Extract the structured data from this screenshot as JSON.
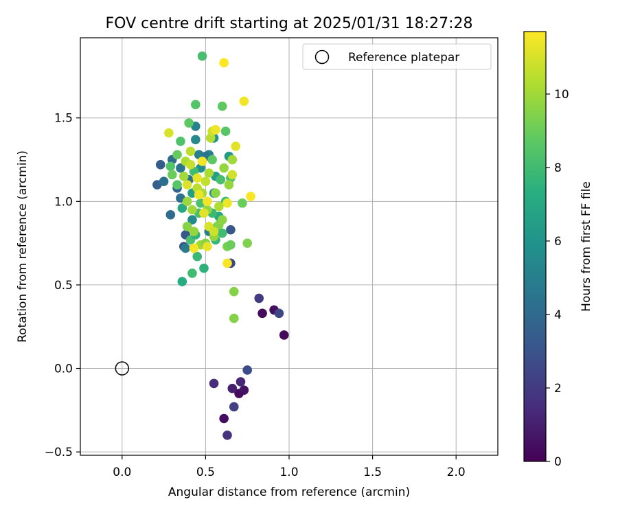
{
  "chart_data": {
    "type": "scatter",
    "title": "FOV centre drift starting at 2025/01/31 18:27:28",
    "xlabel": "Angular distance from reference (arcmin)",
    "ylabel": "Rotation from reference (arcmin)",
    "xlim": [
      -0.25,
      2.25
    ],
    "ylim": [
      -0.52,
      1.98
    ],
    "xticks": [
      0.0,
      0.5,
      1.0,
      1.5,
      2.0
    ],
    "xtick_labels": [
      "0.0",
      "0.5",
      "1.0",
      "1.5",
      "2.0"
    ],
    "yticks": [
      -0.5,
      0.0,
      0.5,
      1.0,
      1.5
    ],
    "ytick_labels": [
      "−0.5",
      "0.0",
      "0.5",
      "1.0",
      "1.5"
    ],
    "grid": true,
    "legend": {
      "position": "top-right",
      "entries": [
        "Reference platepar"
      ]
    },
    "colorbar": {
      "label": "Hours from first FF file",
      "range": [
        0,
        11.7
      ],
      "ticks": [
        0,
        2,
        4,
        6,
        8,
        10
      ],
      "tick_labels": [
        "0",
        "2",
        "4",
        "6",
        "8",
        "10"
      ],
      "colormap": "viridis"
    },
    "reference_point": {
      "x": 0.0,
      "y": 0.0
    },
    "points": [
      [
        0.97,
        0.2,
        0.2
      ],
      [
        0.84,
        0.33,
        0.3
      ],
      [
        0.91,
        0.35,
        0.5
      ],
      [
        0.61,
        -0.3,
        0.4
      ],
      [
        0.7,
        -0.15,
        0.3
      ],
      [
        0.73,
        -0.13,
        0.6
      ],
      [
        0.66,
        -0.12,
        1.0
      ],
      [
        0.71,
        -0.08,
        1.3
      ],
      [
        0.63,
        -0.4,
        1.7
      ],
      [
        0.55,
        -0.09,
        1.5
      ],
      [
        0.67,
        -0.23,
        2.2
      ],
      [
        0.82,
        0.42,
        2.0
      ],
      [
        0.94,
        0.33,
        2.5
      ],
      [
        0.75,
        -0.01,
        2.7
      ],
      [
        0.65,
        0.63,
        2.5
      ],
      [
        0.65,
        0.83,
        3.2
      ],
      [
        0.37,
        0.73,
        3.0
      ],
      [
        0.38,
        0.8,
        3.2
      ],
      [
        0.23,
        1.22,
        3.4
      ],
      [
        0.21,
        1.1,
        3.5
      ],
      [
        0.29,
        0.92,
        4.0
      ],
      [
        0.35,
        1.02,
        4.2
      ],
      [
        0.25,
        1.12,
        4.3
      ],
      [
        0.4,
        1.13,
        4.5
      ],
      [
        0.44,
        1.37,
        5.5
      ],
      [
        0.44,
        1.45,
        5.2
      ],
      [
        0.55,
        1.38,
        6.0
      ],
      [
        0.52,
        1.28,
        5.0
      ],
      [
        0.47,
        1.2,
        5.8
      ],
      [
        0.33,
        1.08,
        3.8
      ],
      [
        0.35,
        1.2,
        4.5
      ],
      [
        0.38,
        0.72,
        4.8
      ],
      [
        0.42,
        0.89,
        5.5
      ],
      [
        0.52,
        0.82,
        5.0
      ],
      [
        0.55,
        1.05,
        6.0
      ],
      [
        0.64,
        1.27,
        6.3
      ],
      [
        0.3,
        1.25,
        4.0
      ],
      [
        0.46,
        1.28,
        5.0
      ],
      [
        0.5,
        1.27,
        4.5
      ],
      [
        0.56,
        1.15,
        6.5
      ],
      [
        0.58,
        0.91,
        7.0
      ],
      [
        0.42,
        1.05,
        6.5
      ],
      [
        0.36,
        0.96,
        7.0
      ],
      [
        0.36,
        0.52,
        7.2
      ],
      [
        0.49,
        0.6,
        7.5
      ],
      [
        0.45,
        0.67,
        7.8
      ],
      [
        0.48,
        1.87,
        8.2
      ],
      [
        0.44,
        1.58,
        8.5
      ],
      [
        0.6,
        1.57,
        8.8
      ],
      [
        0.62,
        1.42,
        8.6
      ],
      [
        0.4,
        1.47,
        8.7
      ],
      [
        0.35,
        1.36,
        8.4
      ],
      [
        0.33,
        1.28,
        8.9
      ],
      [
        0.29,
        1.21,
        8.5
      ],
      [
        0.3,
        1.16,
        9.0
      ],
      [
        0.33,
        1.1,
        8.6
      ],
      [
        0.43,
        1.18,
        8.0
      ],
      [
        0.47,
        0.99,
        8.3
      ],
      [
        0.54,
        1.25,
        8.7
      ],
      [
        0.59,
        1.13,
        8.2
      ],
      [
        0.65,
        1.14,
        8.4
      ],
      [
        0.62,
        1.0,
        8.1
      ],
      [
        0.57,
        0.85,
        8.5
      ],
      [
        0.6,
        0.81,
        8.0
      ],
      [
        0.41,
        0.77,
        8.3
      ],
      [
        0.42,
        0.57,
        8.0
      ],
      [
        0.44,
        0.8,
        7.6
      ],
      [
        0.56,
        0.77,
        7.7
      ],
      [
        0.54,
        0.93,
        7.9
      ],
      [
        0.46,
        0.93,
        8.2
      ],
      [
        0.39,
        0.85,
        9.5
      ],
      [
        0.43,
        0.82,
        9.8
      ],
      [
        0.47,
        0.74,
        10.0
      ],
      [
        0.5,
        0.75,
        9.5
      ],
      [
        0.55,
        0.79,
        9.8
      ],
      [
        0.58,
        0.86,
        9.5
      ],
      [
        0.6,
        0.89,
        9.6
      ],
      [
        0.63,
        0.73,
        9.2
      ],
      [
        0.65,
        0.74,
        9.0
      ],
      [
        0.72,
        0.99,
        9.0
      ],
      [
        0.75,
        0.75,
        9.4
      ],
      [
        0.67,
        0.46,
        9.5
      ],
      [
        0.67,
        0.3,
        9.5
      ],
      [
        0.56,
        1.05,
        9.6
      ],
      [
        0.52,
        1.17,
        10.2
      ],
      [
        0.61,
        1.2,
        9.8
      ],
      [
        0.66,
        1.25,
        10.0
      ],
      [
        0.64,
        1.1,
        9.8
      ],
      [
        0.51,
        0.95,
        9.7
      ],
      [
        0.48,
        1.05,
        10.1
      ],
      [
        0.42,
        0.95,
        10.0
      ],
      [
        0.39,
        1.0,
        9.9
      ],
      [
        0.45,
        1.08,
        10.5
      ],
      [
        0.53,
        1.38,
        10.4
      ],
      [
        0.54,
        1.42,
        10.8
      ],
      [
        0.41,
        1.3,
        10.5
      ],
      [
        0.38,
        1.24,
        10.2
      ],
      [
        0.37,
        1.15,
        10.0
      ],
      [
        0.28,
        1.41,
        11.0
      ],
      [
        0.56,
        1.43,
        11.4
      ],
      [
        0.68,
        1.33,
        11.2
      ],
      [
        0.73,
        1.6,
        11.5
      ],
      [
        0.61,
        1.83,
        11.7
      ],
      [
        0.43,
        0.72,
        11.6
      ],
      [
        0.51,
        0.73,
        11.3
      ],
      [
        0.49,
        0.93,
        11.2
      ],
      [
        0.51,
        1.0,
        11.5
      ],
      [
        0.52,
        0.85,
        11.0
      ],
      [
        0.55,
        0.82,
        10.8
      ],
      [
        0.45,
        1.14,
        11.3
      ],
      [
        0.46,
        1.04,
        11.4
      ],
      [
        0.48,
        1.24,
        11.5
      ],
      [
        0.39,
        1.1,
        11.1
      ],
      [
        0.77,
        1.03,
        11.6
      ],
      [
        0.63,
        0.63,
        11.6
      ],
      [
        0.63,
        0.99,
        11.4
      ],
      [
        0.66,
        1.16,
        10.9
      ],
      [
        0.41,
        1.22,
        10.7
      ],
      [
        0.5,
        1.12,
        10.6
      ],
      [
        0.58,
        0.97,
        10.3
      ]
    ]
  }
}
